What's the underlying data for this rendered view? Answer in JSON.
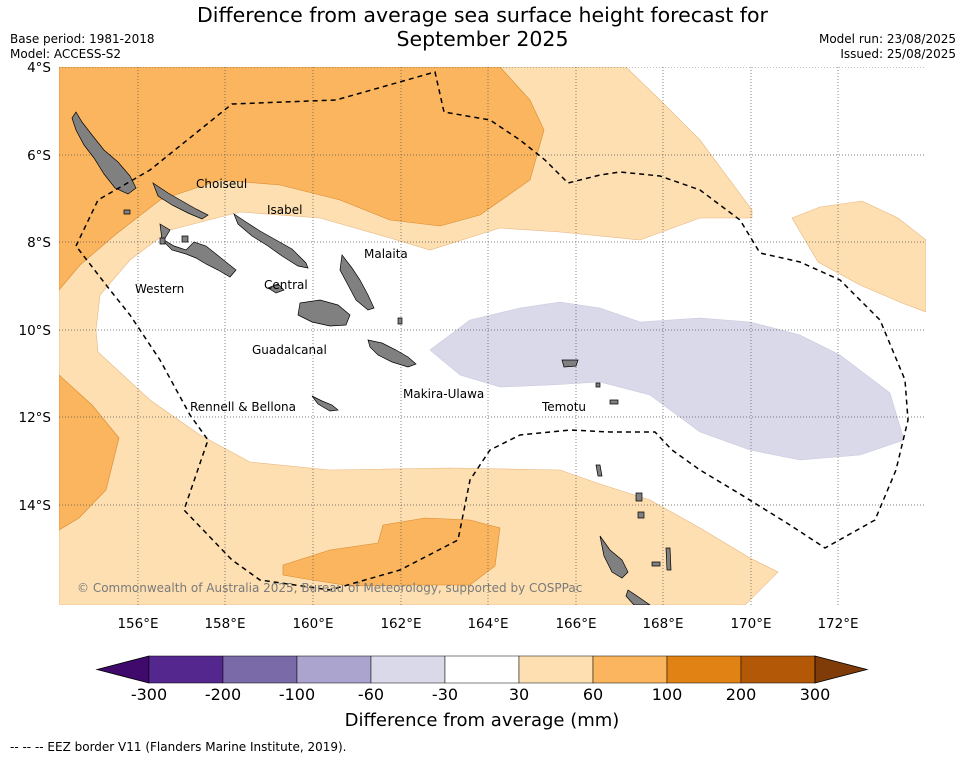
{
  "title_line1": "Difference from average sea surface height forecast for",
  "title_line2": "September 2025",
  "base_period": "Base period: 1981-2018",
  "model": "Model: ACCESS-S2",
  "model_run": "Model run: 23/08/2025",
  "issued": "Issued: 25/08/2025",
  "lat_labels": [
    "4°S",
    "6°S",
    "8°S",
    "10°S",
    "12°S",
    "14°S"
  ],
  "lon_labels": [
    "156°E",
    "158°E",
    "160°E",
    "162°E",
    "164°E",
    "166°E",
    "168°E",
    "170°E",
    "172°E"
  ],
  "regions": {
    "choiseul": "Choiseul",
    "isabel": "Isabel",
    "malaita": "Malaita",
    "western": "Western",
    "central": "Central",
    "guadalcanal": "Guadalcanal",
    "makira": "Makira-Ulawa",
    "temotu": "Temotu",
    "rennell": "Rennell & Bellona"
  },
  "copyright": "© Commonwealth of Australia 2025, Bureau of Meteorology, supported by COSPPac",
  "colorbar": {
    "ticks": [
      "-300",
      "-200",
      "-100",
      "-60",
      "-30",
      "30",
      "60",
      "100",
      "200",
      "300"
    ],
    "colors": [
      "#3f0a6b",
      "#54278f",
      "#7b6aa8",
      "#aba4cf",
      "#d9d9ea",
      "#ffffff",
      "#fddfb1",
      "#fab55e",
      "#e08214",
      "#b35806",
      "#7f3b08"
    ],
    "label": "Difference from average (mm)"
  },
  "legend_text": "--  --  -- EEZ border V11 (Flanders Marine Institute, 2019)."
}
